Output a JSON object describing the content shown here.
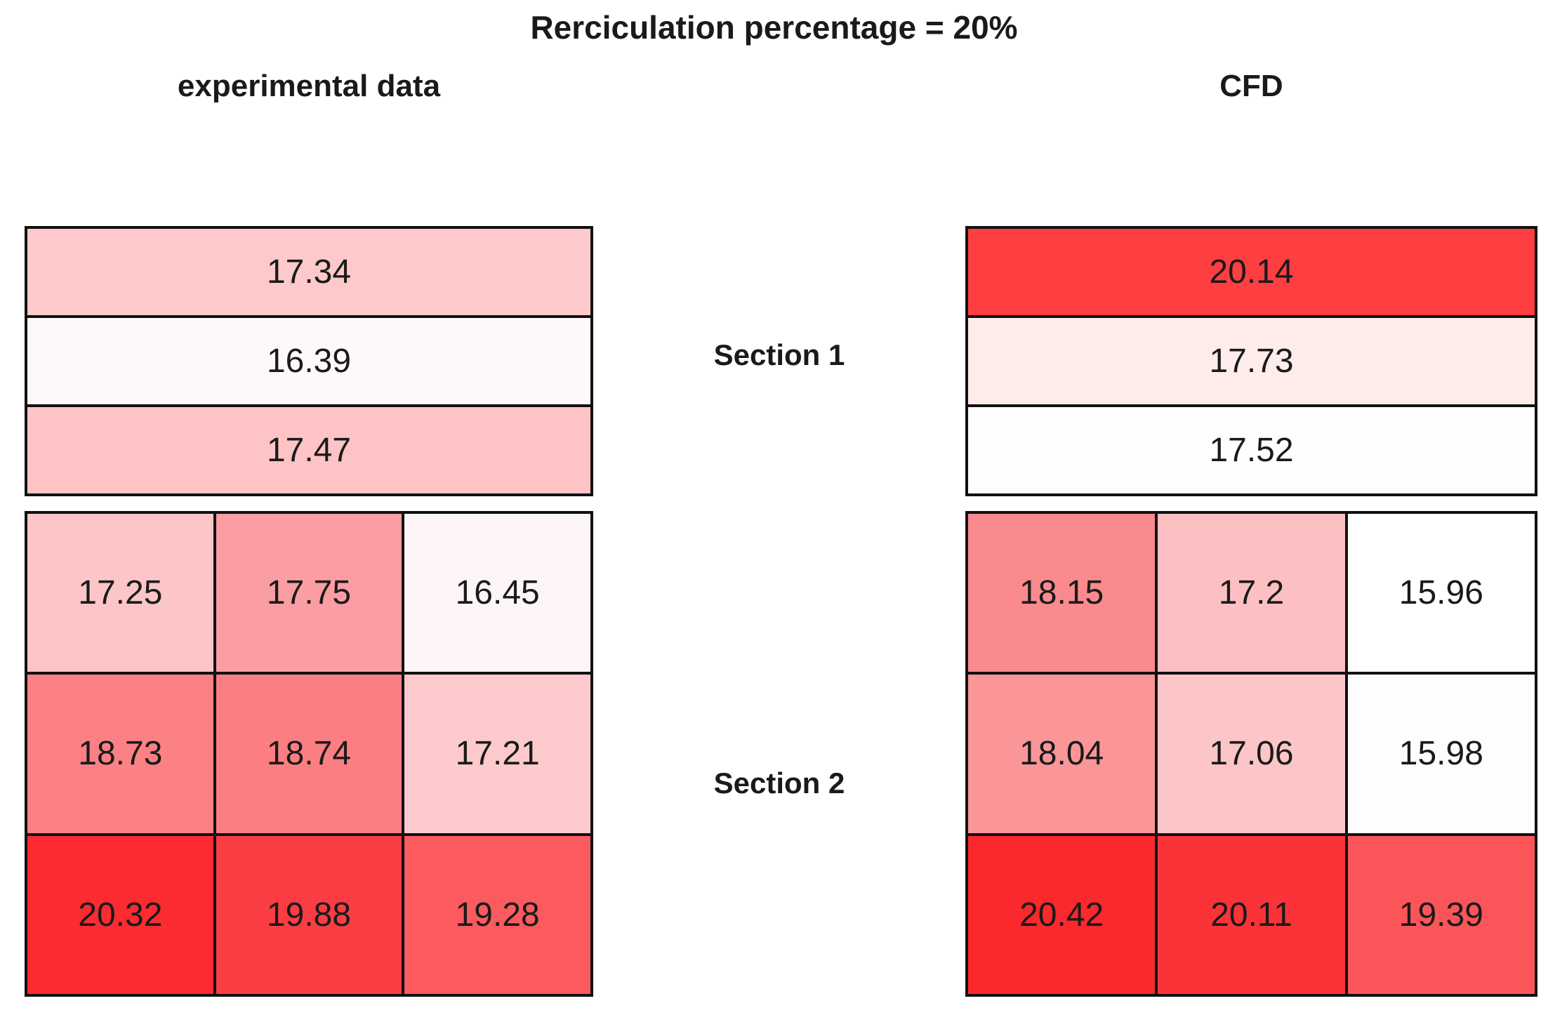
{
  "title": "Rerciculation percentage = 20%",
  "headers": {
    "experimental": "experimental data",
    "cfd": "CFD"
  },
  "section_labels": {
    "section1": "Section 1",
    "section2": "Section 2"
  },
  "style": {
    "border_color": "#111111",
    "text_color": "#1a1a1a",
    "background": "#ffffff",
    "colormap_low_color": "#ffffff",
    "colormap_high_color": "#fb282d"
  },
  "chart_data": {
    "type": "heatmap",
    "title": "Rerciculation percentage = 20%",
    "colormap": "white (low) to red (high)",
    "legend_position": "none",
    "grid": "black cell borders",
    "groups": [
      {
        "name": "experimental data",
        "tables": [
          {
            "section": "Section 1",
            "rows": 3,
            "cols": 1,
            "values": [
              [
                17.34
              ],
              [
                16.39
              ],
              [
                17.47
              ]
            ]
          },
          {
            "section": "Section 2",
            "rows": 3,
            "cols": 3,
            "values": [
              [
                17.25,
                17.75,
                16.45
              ],
              [
                18.73,
                18.74,
                17.21
              ],
              [
                20.32,
                19.88,
                19.28
              ]
            ]
          }
        ]
      },
      {
        "name": "CFD",
        "tables": [
          {
            "section": "Section 1",
            "rows": 3,
            "cols": 1,
            "values": [
              [
                20.14
              ],
              [
                17.73
              ],
              [
                17.52
              ]
            ]
          },
          {
            "section": "Section 2",
            "rows": 3,
            "cols": 3,
            "values": [
              [
                18.15,
                17.2,
                15.96
              ],
              [
                18.04,
                17.06,
                15.98
              ],
              [
                20.42,
                20.11,
                19.39
              ]
            ]
          }
        ]
      }
    ]
  },
  "render": {
    "tables": [
      {
        "id": "exp-s1",
        "cols": 1,
        "cells": [
          {
            "t": "17.34",
            "c": "#fec9cb"
          },
          {
            "t": "16.39",
            "c": "#fef8f8"
          },
          {
            "t": "17.47",
            "c": "#fec3c5"
          }
        ]
      },
      {
        "id": "cfd-s1",
        "cols": 1,
        "cells": [
          {
            "t": "20.14",
            "c": "#ff3e41"
          },
          {
            "t": "17.73",
            "c": "#feeceb"
          },
          {
            "t": "17.52",
            "c": "#fffefe"
          }
        ]
      },
      {
        "id": "exp-s2",
        "cols": 3,
        "cells": [
          {
            "t": "17.25",
            "c": "#fcc5c8"
          },
          {
            "t": "17.75",
            "c": "#fa9ea3"
          },
          {
            "t": "16.45",
            "c": "#fdf5f5"
          },
          {
            "t": "18.73",
            "c": "#fb8184"
          },
          {
            "t": "18.74",
            "c": "#fb7f82"
          },
          {
            "t": "17.21",
            "c": "#fccacd"
          },
          {
            "t": "20.32",
            "c": "#fb2b31"
          },
          {
            "t": "19.88",
            "c": "#fa3d42"
          },
          {
            "t": "19.28",
            "c": "#fb5a5e"
          }
        ]
      },
      {
        "id": "cfd-s2",
        "cols": 3,
        "cells": [
          {
            "t": "18.15",
            "c": "#fa8a8d"
          },
          {
            "t": "17.2",
            "c": "#fdc0c2"
          },
          {
            "t": "15.96",
            "c": "#ffffff"
          },
          {
            "t": "18.04",
            "c": "#fa9598"
          },
          {
            "t": "17.06",
            "c": "#fcc6c9"
          },
          {
            "t": "15.98",
            "c": "#fefcfc"
          },
          {
            "t": "20.42",
            "c": "#fb282d"
          },
          {
            "t": "20.11",
            "c": "#fa3338"
          },
          {
            "t": "19.39",
            "c": "#fb5559"
          }
        ]
      }
    ]
  }
}
